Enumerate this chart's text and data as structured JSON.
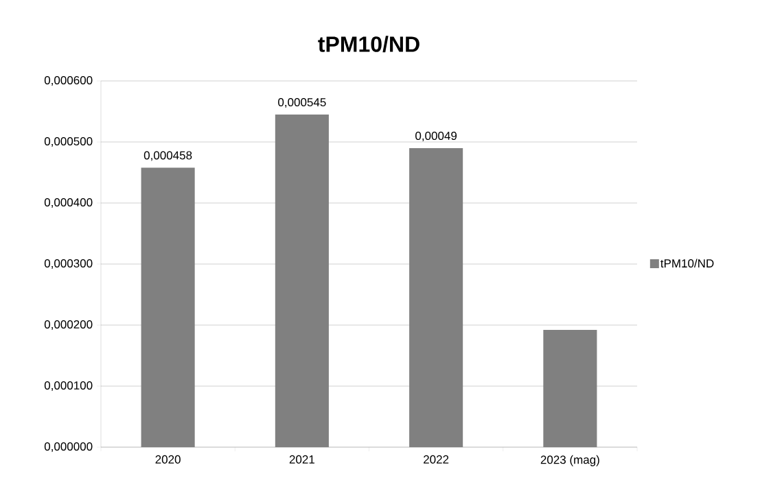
{
  "chart_data": {
    "type": "bar",
    "title": "tPM10/ND",
    "categories": [
      "2020",
      "2021",
      "2022",
      "2023 (mag)"
    ],
    "series": [
      {
        "name": "tPM10/ND",
        "color": "#808080",
        "values": [
          0.000458,
          0.000545,
          0.00049,
          0.000192
        ],
        "value_labels": [
          "0,000458",
          "0,000545",
          "0,00049",
          null
        ]
      }
    ],
    "ylim": [
      0,
      0.0006
    ],
    "yticks": [
      {
        "value": 0,
        "label": "0,000000"
      },
      {
        "value": 0.0001,
        "label": "0,000100"
      },
      {
        "value": 0.0002,
        "label": "0,000200"
      },
      {
        "value": 0.0003,
        "label": "0,000300"
      },
      {
        "value": 0.0004,
        "label": "0,000400"
      },
      {
        "value": 0.0005,
        "label": "0,000500"
      },
      {
        "value": 0.0006,
        "label": "0,000600"
      }
    ],
    "grid": "y",
    "legend": "right"
  }
}
